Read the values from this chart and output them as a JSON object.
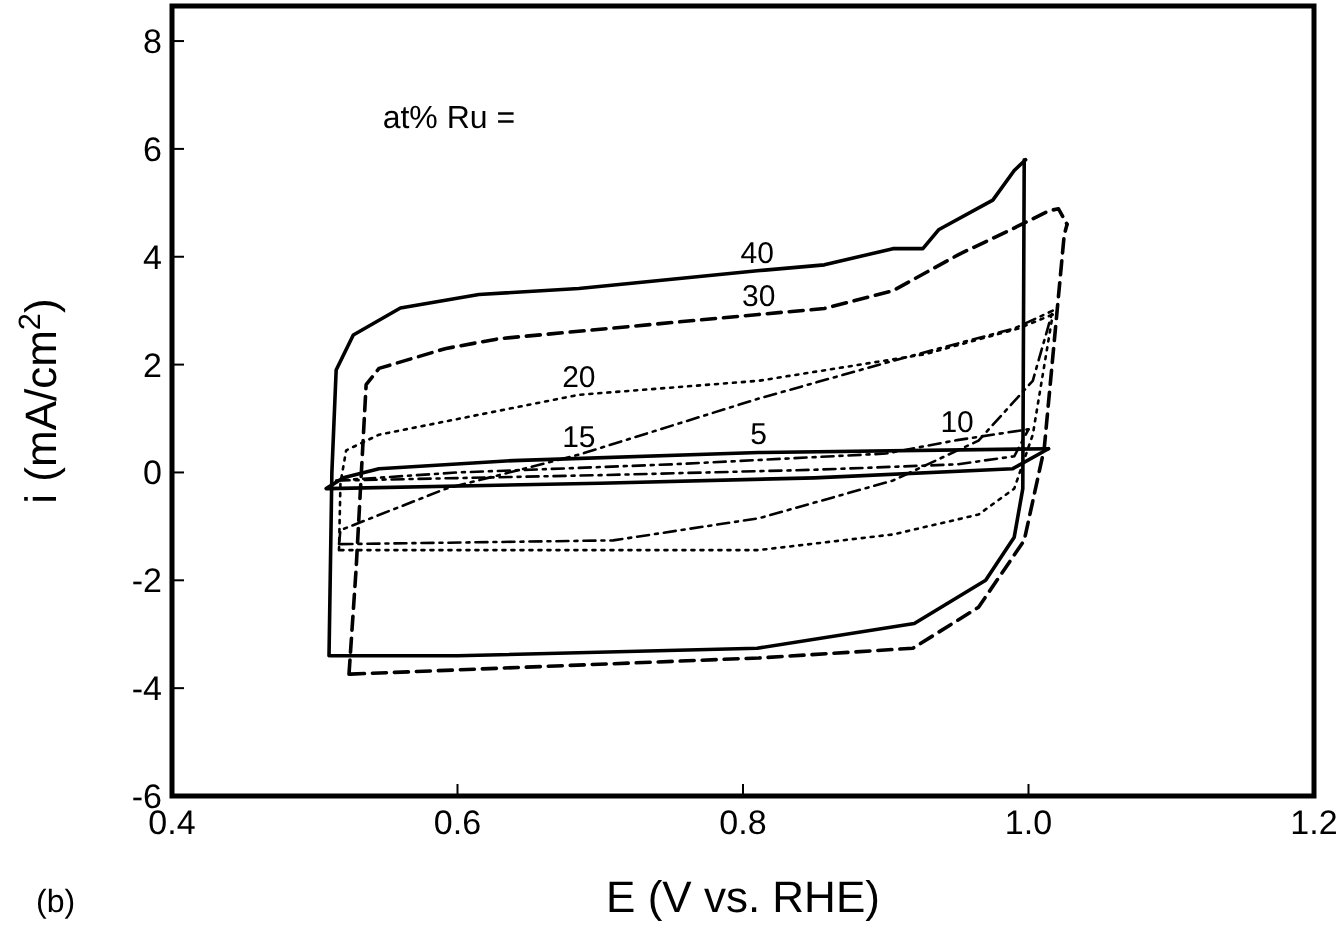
{
  "chart_data": {
    "type": "line",
    "xlabel": "E (V vs. RHE)",
    "ylabel": "i (mA/cm$^{2}$)",
    "xlim": [
      0.4,
      1.2
    ],
    "ylim": [
      -6,
      8.65
    ],
    "xticks": [
      {
        "value": 0.4,
        "label": "0.4"
      },
      {
        "value": 0.6,
        "label": "0.6"
      },
      {
        "value": 0.8,
        "label": "0.8"
      },
      {
        "value": 1.0,
        "label": "1.0"
      },
      {
        "value": 1.2,
        "label": "1.2"
      }
    ],
    "yticks": [
      -6,
      -4,
      -2,
      0,
      2,
      4,
      6,
      8
    ],
    "grid": false,
    "legend": false,
    "marker": "none",
    "series": [
      {
        "name": "40",
        "color": "#000000",
        "line_style": "solid",
        "x": [
          0.51,
          0.512,
          0.515,
          0.527,
          0.56,
          0.615,
          0.685,
          0.81,
          0.857,
          0.905,
          0.926,
          0.937,
          0.975,
          0.99,
          0.998
        ],
        "values": [
          -3.4,
          0,
          1.9,
          2.55,
          3.05,
          3.3,
          3.41,
          3.74,
          3.85,
          4.15,
          4.15,
          4.5,
          5.05,
          5.6,
          5.8
        ]
      },
      {
        "color": "#000000",
        "line_style": "solid",
        "x": [
          0.511,
          0.6,
          0.81,
          0.92,
          0.97,
          0.99,
          0.996,
          0.997
        ],
        "values": [
          -3.4,
          -3.4,
          -3.26,
          -2.8,
          -2.0,
          -1.2,
          -0.3,
          5.8
        ]
      },
      {
        "name": "30",
        "color": "#000000",
        "line_style": "dashed",
        "x": [
          0.524,
          0.529,
          0.536,
          0.545,
          0.592,
          0.629,
          0.811,
          0.857,
          0.905,
          0.951,
          0.989,
          1.014,
          1.021,
          1.027
        ],
        "values": [
          -3.74,
          -1.78,
          1.63,
          1.93,
          2.3,
          2.48,
          2.93,
          3.04,
          3.37,
          4.04,
          4.52,
          4.85,
          4.89,
          4.6
        ]
      },
      {
        "color": "#000000",
        "line_style": "dashed",
        "x": [
          0.525,
          0.811,
          0.919,
          0.965,
          0.997,
          1.011,
          1.025,
          1.027
        ],
        "values": [
          -3.74,
          -3.44,
          -3.26,
          -2.5,
          -1.26,
          0.44,
          4.4,
          4.6
        ]
      },
      {
        "name": "20",
        "color": "#000000",
        "line_style": "dotted",
        "x": [
          0.517,
          0.518,
          0.522,
          0.545,
          0.685,
          0.811,
          0.927,
          0.993,
          1.017
        ],
        "values": [
          -1.44,
          -0.2,
          0.41,
          0.7,
          1.44,
          1.7,
          2.19,
          2.67,
          2.93
        ]
      },
      {
        "color": "#000000",
        "line_style": "dotted",
        "x": [
          0.518,
          0.811,
          0.905,
          0.965,
          0.99,
          1.003,
          1.017
        ],
        "values": [
          -1.44,
          -1.44,
          -1.15,
          -0.78,
          -0.3,
          0.7,
          2.93
        ]
      },
      {
        "name": "15",
        "color": "#000000",
        "line_style": "dashdot",
        "x": [
          0.517,
          0.518,
          0.592,
          0.685,
          0.811,
          0.905,
          0.99,
          1.017
        ],
        "values": [
          -1.33,
          -1.07,
          -0.3,
          0.33,
          1.37,
          2.07,
          2.67,
          3.0
        ]
      },
      {
        "color": "#000000",
        "line_style": "dashdot",
        "x": [
          0.518,
          0.709,
          0.811,
          0.905,
          0.965,
          1.003,
          1.017
        ],
        "values": [
          -1.33,
          -1.26,
          -0.85,
          -0.15,
          0.59,
          1.7,
          3.0
        ]
      },
      {
        "name": "10",
        "color": "#000000",
        "line_style": "dashdot",
        "x": [
          0.515,
          0.6,
          0.75,
          0.9,
          0.95,
          1.0
        ],
        "values": [
          -0.15,
          0,
          0.15,
          0.35,
          0.6,
          0.8
        ]
      },
      {
        "color": "#000000",
        "line_style": "dashdot",
        "x": [
          0.516,
          0.7,
          0.85,
          0.95,
          0.99,
          1.0
        ],
        "values": [
          -0.15,
          -0.05,
          0.05,
          0.15,
          0.3,
          0.8
        ]
      },
      {
        "name": "5",
        "color": "#000000",
        "line_style": "solid",
        "x": [
          0.508,
          0.52,
          0.545,
          0.639,
          0.811,
          1.014
        ],
        "values": [
          -0.3,
          -0.1,
          0.07,
          0.22,
          0.37,
          0.44
        ]
      },
      {
        "color": "#000000",
        "line_style": "solid",
        "x": [
          0.509,
          0.7,
          0.85,
          0.989,
          1.014
        ],
        "values": [
          -0.3,
          -0.2,
          -0.1,
          0.07,
          0.44
        ]
      }
    ],
    "legend_title": "at% Ru =",
    "annotations": [
      "(b)"
    ]
  }
}
